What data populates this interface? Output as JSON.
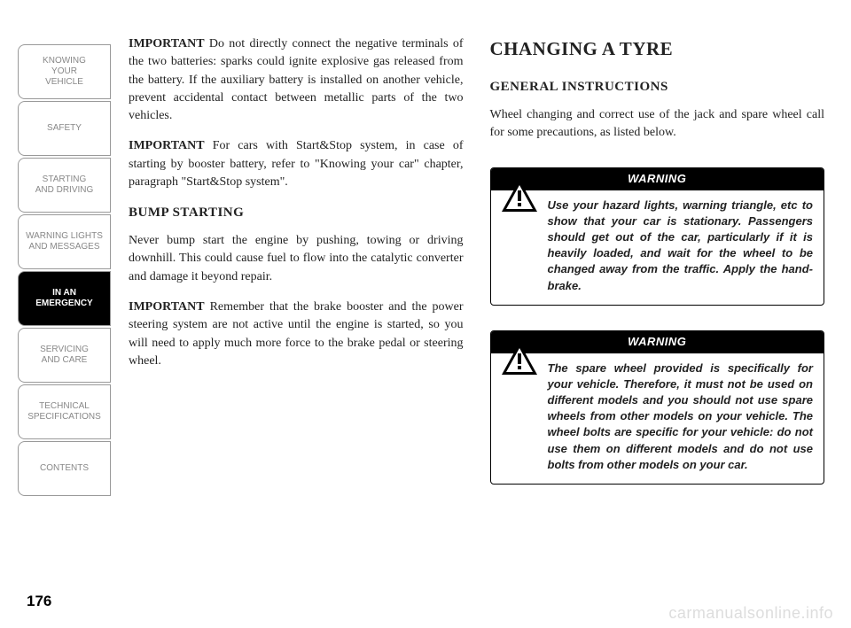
{
  "sidebar": {
    "tabs": [
      {
        "label": "KNOWING\nYOUR\nVEHICLE",
        "active": false
      },
      {
        "label": "SAFETY",
        "active": false
      },
      {
        "label": "STARTING\nAND DRIVING",
        "active": false
      },
      {
        "label": "WARNING LIGHTS\nAND MESSAGES",
        "active": false
      },
      {
        "label": "IN AN\nEMERGENCY",
        "active": true
      },
      {
        "label": "SERVICING\nAND CARE",
        "active": false
      },
      {
        "label": "TECHNICAL\nSPECIFICATIONS",
        "active": false
      },
      {
        "label": "CONTENTS",
        "active": false
      }
    ]
  },
  "left_column": {
    "p1_lead": "IMPORTANT",
    "p1_rest": " Do not directly connect the negative terminals of the two batteries: sparks could ignite explosive gas released from the battery. If the auxiliary battery is installed on another vehicle, prevent accidental contact between metallic parts of the two vehicles.",
    "p2_lead": "IMPORTANT",
    "p2_rest": " For cars with Start&Stop system, in case of starting by booster battery, refer to \"Knowing your car\" chapter, paragraph \"Start&Stop system\".",
    "sub1": "BUMP STARTING",
    "p3": "Never bump start the engine by pushing, towing or driving downhill. This could cause fuel to flow into the catalytic converter and damage it beyond repair.",
    "p4_lead": "IMPORTANT",
    "p4_rest": " Remember that the brake booster and the power steering system are not active until the engine is started, so you will need to apply much more force to the brake pedal or steering wheel."
  },
  "right_column": {
    "title": "CHANGING A TYRE",
    "sub": "GENERAL INSTRUCTIONS",
    "intro": "Wheel changing and correct use of the jack and spare wheel call for some precautions, as listed below.",
    "warning_label": "WARNING",
    "warning1": "Use your hazard lights, warning triangle, etc to show that your car is stationary. Passengers should get out of the car, particularly if it is heavily loaded, and wait for the wheel to be changed away from the traffic. Apply the hand-brake.",
    "warning2": "The spare wheel provided is specifically for your vehicle. Therefore, it must not be used on different models and you should not use spare wheels from other models on your vehicle. The wheel bolts are specific for your vehicle: do not use them on different models and do not use bolts from other models on your car."
  },
  "page_number": "176",
  "watermark": "carmanualsonline.info",
  "colors": {
    "text": "#222222",
    "tab_border": "#999999",
    "tab_inactive_text": "#888888",
    "black": "#000000",
    "white": "#ffffff",
    "watermark": "#dddddd"
  }
}
